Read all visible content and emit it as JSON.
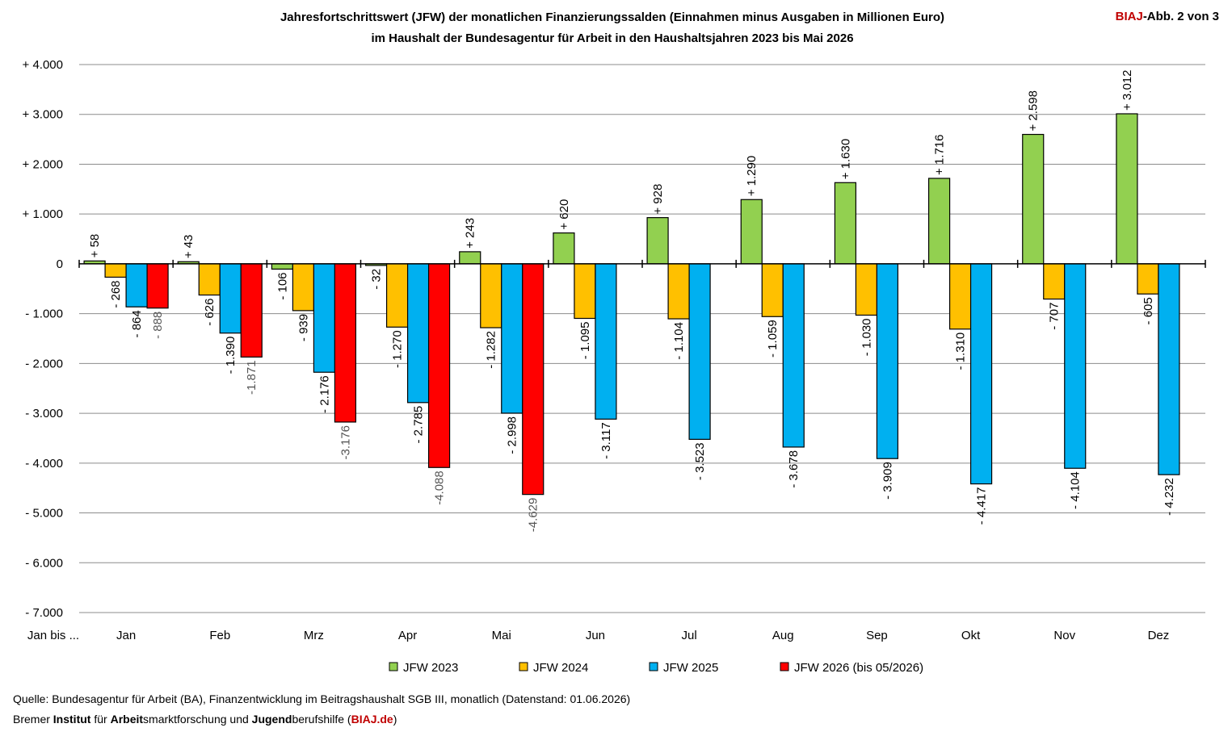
{
  "badge": {
    "brand": "BIAJ",
    "suffix": "-Abb. 2 von 3"
  },
  "chart_data": {
    "type": "bar",
    "title_line1": "Jahresfortschrittswert (JFW) der monatlichen Finanzierungssalden (Einnahmen minus Ausgaben in Millionen Euro)",
    "title_line2": "im Haushalt der Bundesagentur für Arbeit in den Haushaltsjahren 2023 bis Mai 2026",
    "x_axis_prefix": "Jan bis ...",
    "categories": [
      "Jan",
      "Feb",
      "Mrz",
      "Apr",
      "Mai",
      "Jun",
      "Jul",
      "Aug",
      "Sep",
      "Okt",
      "Nov",
      "Dez"
    ],
    "ylim": [
      -7000,
      4000
    ],
    "yticks": [
      4000,
      3000,
      2000,
      1000,
      0,
      -1000,
      -2000,
      -3000,
      -4000,
      -5000,
      -6000,
      -7000
    ],
    "ytick_labels": [
      "+ 4.000",
      "+ 3.000",
      "+ 2.000",
      "+ 1.000",
      "0",
      "- 1.000",
      "- 2.000",
      "- 3.000",
      "- 4.000",
      "- 5.000",
      "- 6.000",
      "- 7.000"
    ],
    "grid": true,
    "legend_position": "bottom",
    "series": [
      {
        "name": "JFW 2023",
        "color": "#92d050",
        "values": [
          58,
          43,
          -106,
          -32,
          243,
          620,
          928,
          1290,
          1630,
          1716,
          2598,
          3012
        ],
        "labels": [
          "+ 58",
          "+ 43",
          "- 106",
          "- 32",
          "+ 243",
          "+ 620",
          "+ 928",
          "+ 1.290",
          "+ 1.630",
          "+ 1.716",
          "+ 2.598",
          "+ 3.012"
        ]
      },
      {
        "name": "JFW 2024",
        "color": "#ffc000",
        "values": [
          -268,
          -626,
          -939,
          -1270,
          -1282,
          -1095,
          -1104,
          -1059,
          -1030,
          -1310,
          -707,
          -605
        ],
        "labels": [
          "- 268",
          "- 626",
          "- 939",
          "- 1.270",
          "- 1.282",
          "- 1.095",
          "- 1.104",
          "- 1.059",
          "- 1.030",
          "- 1.310",
          "- 707",
          "- 605"
        ]
      },
      {
        "name": "JFW 2025",
        "color": "#00b0f0",
        "values": [
          -864,
          -1390,
          -2176,
          -2785,
          -2998,
          -3117,
          -3523,
          -3678,
          -3909,
          -4417,
          -4104,
          -4232
        ],
        "labels": [
          "- 864",
          "- 1.390",
          "- 2.176",
          "- 2.785",
          "- 2.998",
          "- 3.117",
          "- 3.523",
          "- 3.678",
          "- 3.909",
          "- 4.417",
          "- 4.104",
          "- 4.232"
        ]
      },
      {
        "name": "JFW 2026 (bis 05/2026)",
        "color": "#ff0000",
        "values": [
          -888,
          -1871,
          -3176,
          -4088,
          -4629,
          null,
          null,
          null,
          null,
          null,
          null,
          null
        ],
        "labels": [
          "- 888",
          "-1.871",
          "-3.176",
          "-4.088",
          "-4.629",
          null,
          null,
          null,
          null,
          null,
          null,
          null
        ]
      }
    ]
  },
  "footer": {
    "source": "Quelle: Bundesagentur für Arbeit (BA), Finanzentwicklung im Beitragshaushalt SGB III, monatlich (Datenstand: 01.06.2026)",
    "org_parts": [
      {
        "text": "Bremer ",
        "style": "normal"
      },
      {
        "text": "Institut",
        "style": "bold"
      },
      {
        "text": " für ",
        "style": "normal"
      },
      {
        "text": "Arbeit",
        "style": "bold"
      },
      {
        "text": "smarktforschung und ",
        "style": "normal"
      },
      {
        "text": "Jugend",
        "style": "bold"
      },
      {
        "text": "berufshilfe (",
        "style": "normal"
      },
      {
        "text": "BIAJ.de",
        "style": "red"
      },
      {
        "text": ")",
        "style": "normal"
      }
    ]
  }
}
